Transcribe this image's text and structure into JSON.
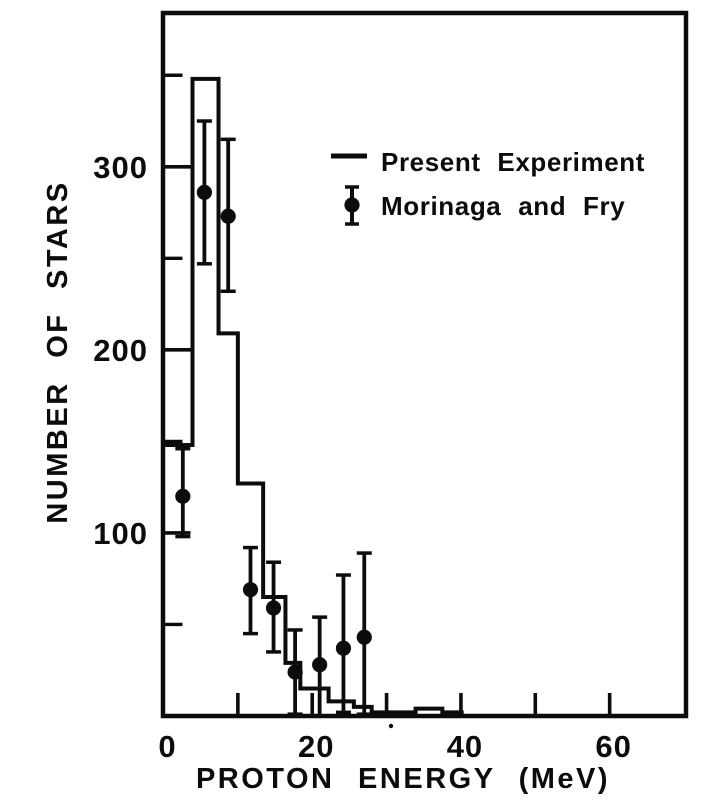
{
  "figure": {
    "background": "#ffffff",
    "ink_color": "#0c0c0c"
  },
  "chart_data": {
    "type": "line",
    "subtype": "step-histogram with scatter error-bar overlay",
    "title": "",
    "xlabel": "PROTON ENERGY (MeV)",
    "ylabel": "NUMBER OF STARS",
    "xlim": [
      0,
      70.2
    ],
    "ylim": [
      0,
      384
    ],
    "grid": false,
    "x_axis": {
      "tick_values": [
        10,
        20,
        30,
        40,
        50,
        60
      ],
      "labeled_values": [
        0,
        20,
        40,
        60
      ],
      "labels": [
        "0",
        "20",
        "40",
        "60"
      ]
    },
    "y_axis": {
      "major_tick_values": [
        100,
        200,
        300
      ],
      "minor_tick_values": [
        50,
        150,
        250,
        350
      ],
      "labels": [
        "100",
        "200",
        "300"
      ]
    },
    "legend": {
      "position": "upper-right-inside",
      "entries": [
        {
          "marker": "line",
          "label": "Present Experiment"
        },
        {
          "marker": "circle-errorbar",
          "label": "Morinaga and Fry"
        }
      ]
    },
    "series": [
      {
        "name": "Present Experiment",
        "type": "step-histogram",
        "bins": [
          {
            "from": 0.0,
            "to": 3.9,
            "value": 148
          },
          {
            "from": 3.9,
            "to": 7.4,
            "value": 348
          },
          {
            "from": 7.4,
            "to": 10.0,
            "value": 209
          },
          {
            "from": 10.0,
            "to": 13.4,
            "value": 127
          },
          {
            "from": 13.4,
            "to": 16.4,
            "value": 65
          },
          {
            "from": 16.4,
            "to": 18.4,
            "value": 29
          },
          {
            "from": 18.4,
            "to": 22.2,
            "value": 15
          },
          {
            "from": 22.2,
            "to": 25.6,
            "value": 8
          },
          {
            "from": 25.6,
            "to": 28.0,
            "value": 5
          },
          {
            "from": 28.0,
            "to": 33.9,
            "value": 2
          },
          {
            "from": 33.9,
            "to": 37.5,
            "value": 4
          },
          {
            "from": 37.5,
            "to": 40.1,
            "value": 2
          }
        ]
      },
      {
        "name": "Morinaga and Fry",
        "type": "scatter-errorbar",
        "points": [
          {
            "x": 2.6,
            "y": 120,
            "err_up": 26,
            "err_down": 22
          },
          {
            "x": 5.5,
            "y": 286,
            "err_up": 39,
            "err_down": 39
          },
          {
            "x": 8.7,
            "y": 273,
            "err_up": 42,
            "err_down": 41
          },
          {
            "x": 11.7,
            "y": 69,
            "err_up": 23,
            "err_down": 24
          },
          {
            "x": 14.8,
            "y": 59,
            "err_up": 25,
            "err_down": 24
          },
          {
            "x": 17.7,
            "y": 24,
            "err_up": 23,
            "err_down": 23
          },
          {
            "x": 21.0,
            "y": 28,
            "err_up": 26,
            "err_down": 28
          },
          {
            "x": 24.2,
            "y": 37,
            "err_up": 40,
            "err_down": 35
          },
          {
            "x": 27.0,
            "y": 43,
            "err_up": 46,
            "err_down": 42
          }
        ]
      }
    ]
  }
}
